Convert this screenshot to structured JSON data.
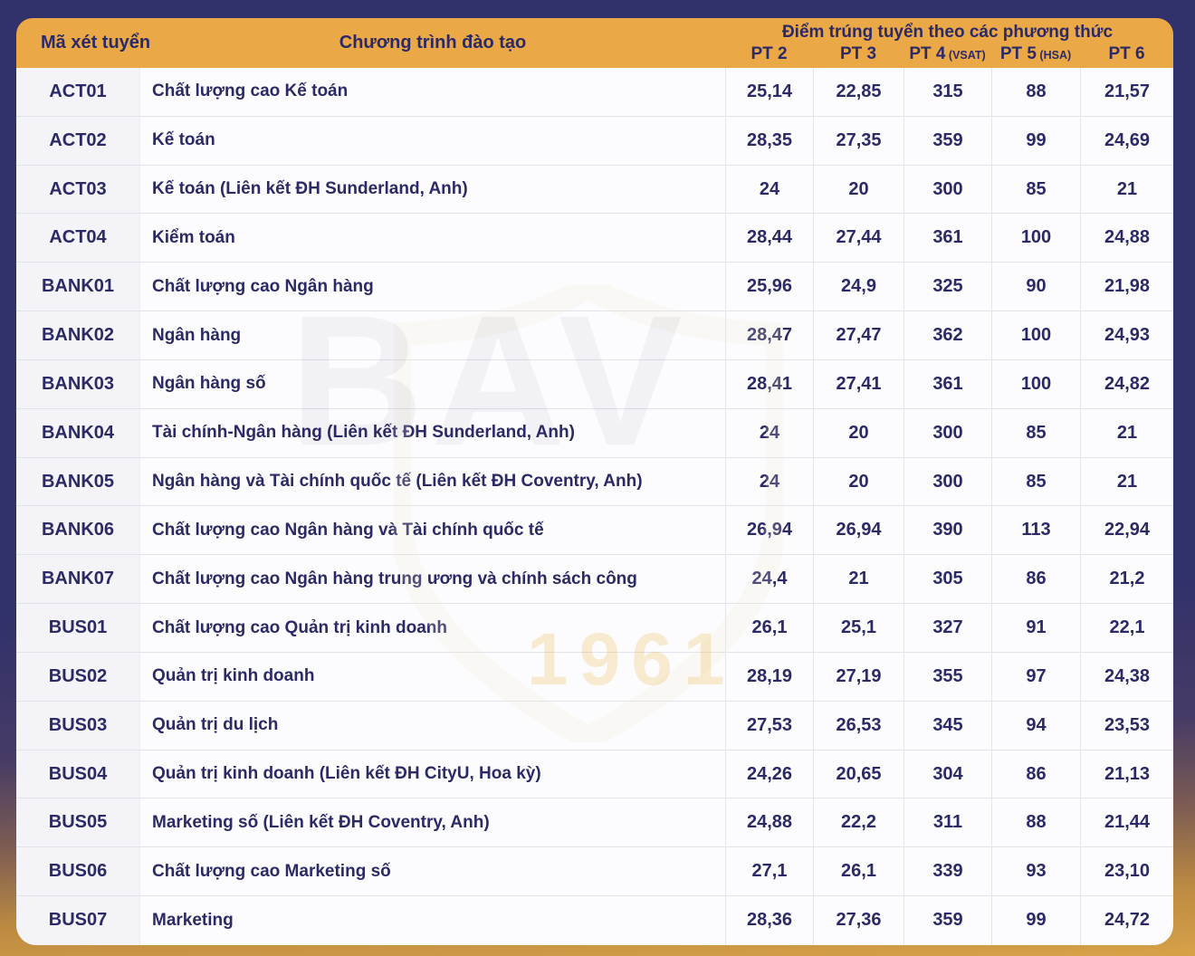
{
  "colors": {
    "background_top": "#31316B",
    "background_bottom": "#D8A148",
    "header_band": "#EBA847",
    "text_navy": "#2B2A66",
    "code_column_bg": "#F3F3F8",
    "body_bg": "#FCFCFE",
    "divider": "#E2E2EB",
    "watermark_gold": "#E9B74A"
  },
  "watermark": {
    "text": "BAV",
    "year": "1961"
  },
  "chart_data": {
    "type": "table",
    "title": "Điểm trúng tuyển theo các phương thức",
    "header": {
      "code": "Mã xét tuyển",
      "program": "Chương trình đào tạo",
      "scores_group": "Điểm trúng tuyển theo các phương thức",
      "methods": [
        {
          "label": "PT 2",
          "note": ""
        },
        {
          "label": "PT 3",
          "note": ""
        },
        {
          "label": "PT 4",
          "note": "(VSAT)"
        },
        {
          "label": "PT 5",
          "note": "(HSA)"
        },
        {
          "label": "PT 6",
          "note": ""
        }
      ]
    },
    "rows": [
      {
        "code": "ACT01",
        "program": "Chất lượng cao Kế toán",
        "scores": [
          "25,14",
          "22,85",
          "315",
          "88",
          "21,57"
        ]
      },
      {
        "code": "ACT02",
        "program": "Kế toán",
        "scores": [
          "28,35",
          "27,35",
          "359",
          "99",
          "24,69"
        ]
      },
      {
        "code": "ACT03",
        "program": "Kế toán (Liên kết ĐH Sunderland, Anh)",
        "scores": [
          "24",
          "20",
          "300",
          "85",
          "21"
        ]
      },
      {
        "code": "ACT04",
        "program": "Kiểm toán",
        "scores": [
          "28,44",
          "27,44",
          "361",
          "100",
          "24,88"
        ]
      },
      {
        "code": "BANK01",
        "program": "Chất lượng cao Ngân hàng",
        "scores": [
          "25,96",
          "24,9",
          "325",
          "90",
          "21,98"
        ]
      },
      {
        "code": "BANK02",
        "program": "Ngân hàng",
        "scores": [
          "28,47",
          "27,47",
          "362",
          "100",
          "24,93"
        ]
      },
      {
        "code": "BANK03",
        "program": "Ngân hàng số",
        "scores": [
          "28,41",
          "27,41",
          "361",
          "100",
          "24,82"
        ]
      },
      {
        "code": "BANK04",
        "program": "Tài chính-Ngân hàng (Liên kết ĐH Sunderland, Anh)",
        "scores": [
          "24",
          "20",
          "300",
          "85",
          "21"
        ]
      },
      {
        "code": "BANK05",
        "program": "Ngân hàng và Tài chính quốc tế (Liên kết ĐH Coventry, Anh)",
        "scores": [
          "24",
          "20",
          "300",
          "85",
          "21"
        ]
      },
      {
        "code": "BANK06",
        "program": "Chất lượng cao Ngân hàng và Tài chính quốc tế",
        "scores": [
          "26,94",
          "26,94",
          "390",
          "113",
          "22,94"
        ]
      },
      {
        "code": "BANK07",
        "program": "Chất lượng cao Ngân hàng trung ương và chính sách công",
        "scores": [
          "24,4",
          "21",
          "305",
          "86",
          "21,2"
        ]
      },
      {
        "code": "BUS01",
        "program": "Chất lượng cao Quản trị kinh doanh",
        "scores": [
          "26,1",
          "25,1",
          "327",
          "91",
          "22,1"
        ]
      },
      {
        "code": "BUS02",
        "program": "Quản trị kinh doanh",
        "scores": [
          "28,19",
          "27,19",
          "355",
          "97",
          "24,38"
        ]
      },
      {
        "code": "BUS03",
        "program": "Quản trị du lịch",
        "scores": [
          "27,53",
          "26,53",
          "345",
          "94",
          "23,53"
        ]
      },
      {
        "code": "BUS04",
        "program": "Quản trị kinh doanh (Liên kết ĐH CityU, Hoa kỳ)",
        "scores": [
          "24,26",
          "20,65",
          "304",
          "86",
          "21,13"
        ]
      },
      {
        "code": "BUS05",
        "program": "Marketing số (Liên kết ĐH Coventry, Anh)",
        "scores": [
          "24,88",
          "22,2",
          "311",
          "88",
          "21,44"
        ]
      },
      {
        "code": "BUS06",
        "program": "Chất lượng cao Marketing số",
        "scores": [
          "27,1",
          "26,1",
          "339",
          "93",
          "23,10"
        ]
      },
      {
        "code": "BUS07",
        "program": "Marketing",
        "scores": [
          "28,36",
          "27,36",
          "359",
          "99",
          "24,72"
        ]
      }
    ]
  }
}
